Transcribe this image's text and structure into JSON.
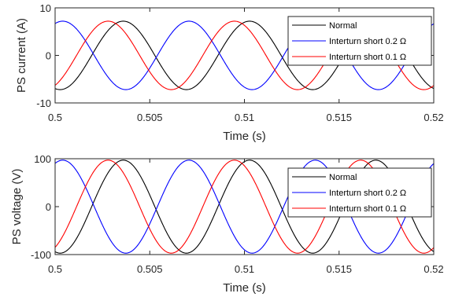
{
  "chart_data": [
    {
      "type": "line",
      "title": "",
      "xlabel": "Time (s)",
      "ylabel": "PS current (A)",
      "xlim": [
        0.5,
        0.52
      ],
      "ylim": [
        -10,
        10
      ],
      "xticks": [
        0.5,
        0.505,
        0.51,
        0.515,
        0.52
      ],
      "yticks": [
        -10,
        0,
        10
      ],
      "xtick_labels": [
        "0.5",
        "0.505",
        "0.51",
        "0.515",
        "0.52"
      ],
      "ytick_labels": [
        "-10",
        "0",
        "10"
      ],
      "grid": false,
      "legend_position": "top-right",
      "waveform": "sinusoid",
      "period": 0.00667,
      "series": [
        {
          "name": "Normal",
          "color": "#000000",
          "amplitude": 7.2,
          "peak_time": 0.5036
        },
        {
          "name": "Interturn short 0.2 Ω",
          "color": "#0000ff",
          "amplitude": 7.2,
          "peak_time": 0.5004
        },
        {
          "name": "Interturn short 0.1 Ω",
          "color": "#ff0000",
          "amplitude": 7.2,
          "peak_time": 0.5028
        }
      ]
    },
    {
      "type": "line",
      "title": "",
      "xlabel": "Time (s)",
      "ylabel": "PS voltage (V)",
      "xlim": [
        0.5,
        0.52
      ],
      "ylim": [
        -100,
        100
      ],
      "xticks": [
        0.5,
        0.505,
        0.51,
        0.515,
        0.52
      ],
      "yticks": [
        -100,
        0,
        100
      ],
      "xtick_labels": [
        "0.5",
        "0.505",
        "0.51",
        "0.515",
        "0.52"
      ],
      "ytick_labels": [
        "-100",
        "0",
        "100"
      ],
      "grid": false,
      "legend_position": "top-right",
      "waveform": "sinusoid",
      "period": 0.00667,
      "series": [
        {
          "name": "Normal",
          "color": "#000000",
          "amplitude": 97,
          "peak_time": 0.5036
        },
        {
          "name": "Interturn short 0.2 Ω",
          "color": "#0000ff",
          "amplitude": 97,
          "peak_time": 0.5004
        },
        {
          "name": "Interturn short 0.1 Ω",
          "color": "#ff0000",
          "amplitude": 97,
          "peak_time": 0.5028
        }
      ]
    }
  ]
}
